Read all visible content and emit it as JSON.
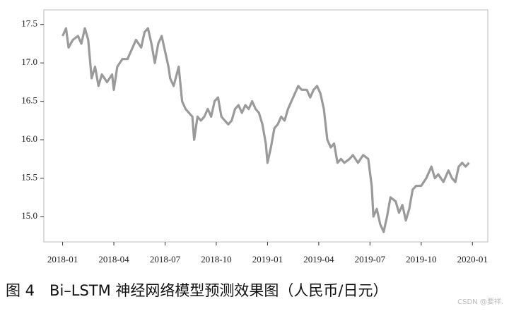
{
  "chart_data": {
    "type": "line",
    "caption": "图 4　Bi–LSTM 神经网络模型预测效果图（人民币/日元）",
    "watermark": "CSDN @要祥.",
    "x": [
      0,
      0.2,
      0.35,
      0.6,
      0.9,
      1.1,
      1.3,
      1.5,
      1.7,
      1.9,
      2.1,
      2.3,
      2.6,
      2.9,
      3.0,
      3.2,
      3.5,
      3.8,
      4.1,
      4.3,
      4.6,
      4.8,
      5.0,
      5.2,
      5.4,
      5.6,
      5.8,
      6.0,
      6.2,
      6.3,
      6.5,
      6.8,
      7.0,
      7.2,
      7.4,
      7.6,
      7.7,
      7.9,
      8.1,
      8.3,
      8.5,
      8.7,
      8.9,
      9.1,
      9.3,
      9.5,
      9.7,
      9.9,
      10.1,
      10.3,
      10.5,
      10.7,
      10.9,
      11.1,
      11.3,
      11.5,
      11.7,
      11.9,
      12.0,
      12.2,
      12.4,
      12.6,
      12.8,
      13.0,
      13.2,
      13.4,
      13.6,
      13.8,
      14.0,
      14.3,
      14.5,
      14.7,
      14.9,
      15.1,
      15.3,
      15.5,
      15.7,
      15.9,
      16.1,
      16.3,
      16.5,
      16.8,
      17.0,
      17.3,
      17.6,
      17.9,
      18.1,
      18.2,
      18.4,
      18.6,
      18.8,
      19.0,
      19.2,
      19.5,
      19.7,
      19.9,
      20.1,
      20.3,
      20.5,
      20.7,
      21.0,
      21.3,
      21.6,
      21.8,
      22.0,
      22.3,
      22.6,
      22.8,
      23.0,
      23.2,
      23.4,
      23.6,
      23.8
    ],
    "series": [
      {
        "color": "#9a9a9a",
        "values": [
          17.35,
          17.45,
          17.2,
          17.3,
          17.35,
          17.25,
          17.45,
          17.3,
          16.8,
          16.95,
          16.7,
          16.85,
          16.75,
          16.85,
          16.65,
          16.95,
          17.05,
          17.05,
          17.2,
          17.3,
          17.2,
          17.4,
          17.45,
          17.25,
          17.0,
          17.25,
          17.35,
          17.15,
          16.95,
          16.8,
          16.7,
          16.95,
          16.5,
          16.4,
          16.35,
          16.3,
          16.0,
          16.3,
          16.25,
          16.3,
          16.4,
          16.3,
          16.5,
          16.55,
          16.3,
          16.25,
          16.2,
          16.25,
          16.4,
          16.45,
          16.35,
          16.45,
          16.4,
          16.5,
          16.4,
          16.35,
          16.2,
          15.95,
          15.7,
          15.9,
          16.15,
          16.2,
          16.3,
          16.25,
          16.4,
          16.5,
          16.6,
          16.7,
          16.65,
          16.65,
          16.55,
          16.65,
          16.7,
          16.6,
          16.4,
          16.0,
          15.9,
          15.95,
          15.7,
          15.75,
          15.7,
          15.75,
          15.8,
          15.7,
          15.8,
          15.75,
          15.4,
          15.0,
          15.1,
          14.9,
          14.8,
          15.0,
          15.25,
          15.2,
          15.05,
          15.15,
          14.95,
          15.1,
          15.35,
          15.4,
          15.4,
          15.5,
          15.65,
          15.5,
          15.55,
          15.45,
          15.6,
          15.5,
          15.45,
          15.65,
          15.7,
          15.65,
          15.7
        ]
      }
    ],
    "xlim": [
      -1.1,
      24.9
    ],
    "xticks": [
      {
        "value": 0,
        "label": "2018-01"
      },
      {
        "value": 3,
        "label": "2018-04"
      },
      {
        "value": 6,
        "label": "2018-07"
      },
      {
        "value": 9,
        "label": "2018-10"
      },
      {
        "value": 12,
        "label": "2019-01"
      },
      {
        "value": 15,
        "label": "2019-04"
      },
      {
        "value": 18,
        "label": "2019-07"
      },
      {
        "value": 21,
        "label": "2019-10"
      },
      {
        "value": 24,
        "label": "2020-01"
      }
    ],
    "ylim": [
      14.67,
      17.69
    ],
    "yticks": [
      {
        "value": 15,
        "label": "15.0"
      },
      {
        "value": 15.5,
        "label": "15.5"
      },
      {
        "value": 16,
        "label": "16.0"
      },
      {
        "value": 16.5,
        "label": "16.5"
      },
      {
        "value": 17,
        "label": "17.0"
      },
      {
        "value": 17.5,
        "label": "17.5"
      }
    ]
  }
}
